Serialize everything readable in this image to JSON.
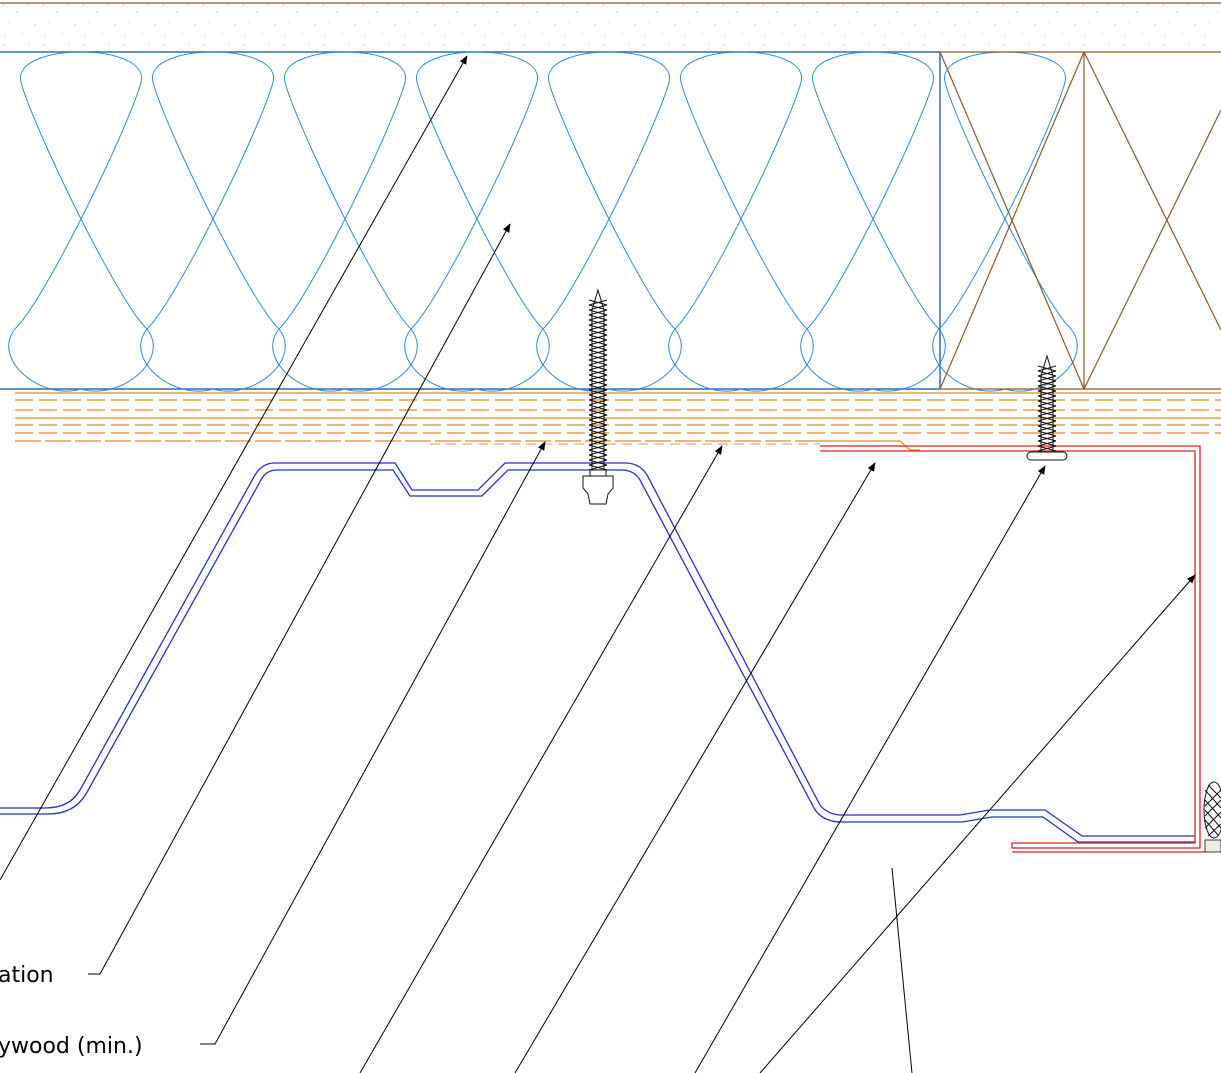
{
  "labels": {
    "insulation": "ation",
    "plywood": "ywood (min.)"
  },
  "colors": {
    "insulation": "#2f8be6",
    "wood_blocking": "#8b5a2b",
    "plywood_layers": "#e68a1a",
    "metal_deck": "#2233cc",
    "flashing": "#e02020",
    "leaders": "#000000"
  }
}
